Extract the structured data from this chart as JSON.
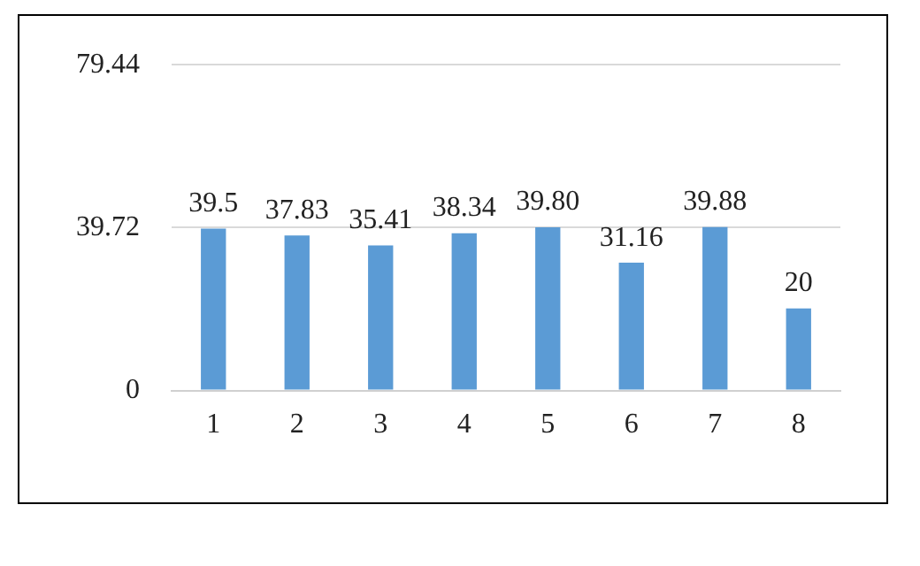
{
  "chart_data": {
    "type": "bar",
    "categories": [
      "1",
      "2",
      "3",
      "4",
      "5",
      "6",
      "7",
      "8"
    ],
    "values": [
      39.5,
      37.83,
      35.41,
      38.34,
      39.8,
      31.16,
      39.88,
      20
    ],
    "value_labels": [
      "39.5",
      "37.83",
      "35.41",
      "38.34",
      "39.80",
      "31.16",
      "39.88",
      "20"
    ],
    "color": "#5b9bd5",
    "ylim": [
      0,
      79.44
    ],
    "yticks": [
      0,
      39.72,
      79.44
    ],
    "grid": "y",
    "legend": false
  }
}
